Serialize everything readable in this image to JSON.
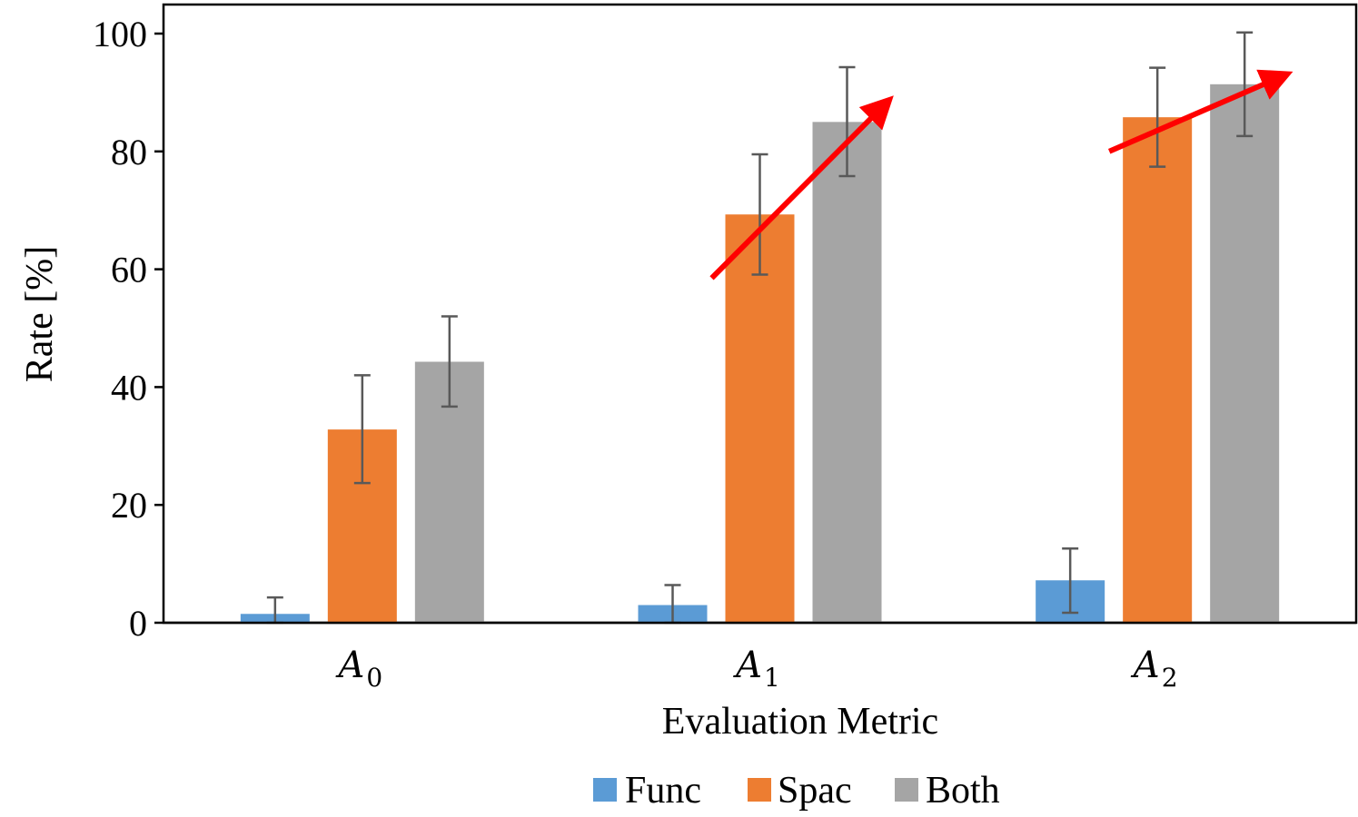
{
  "chart_data": {
    "type": "bar",
    "xlabel": "Evaluation Metric",
    "ylabel": "Rate [%]",
    "ylim": [
      0,
      100
    ],
    "yticks": [
      0,
      20,
      40,
      60,
      80,
      100
    ],
    "categories": [
      {
        "base": "A",
        "sub": "0"
      },
      {
        "base": "A",
        "sub": "1"
      },
      {
        "base": "A",
        "sub": "2"
      }
    ],
    "series": [
      {
        "name": "Func",
        "color": "#5B9BD5",
        "values": [
          1.5,
          3.0,
          7.2
        ],
        "err_low": [
          1.5,
          3.0,
          5.5
        ],
        "err_high": [
          2.8,
          3.4,
          5.4
        ]
      },
      {
        "name": "Spac",
        "color": "#ED7D31",
        "values": [
          32.8,
          69.3,
          85.8
        ],
        "err_low": [
          9.1,
          10.2,
          8.4
        ],
        "err_high": [
          9.2,
          10.2,
          8.4
        ]
      },
      {
        "name": "Both",
        "color": "#A5A5A5",
        "values": [
          44.3,
          85.0,
          91.4
        ],
        "err_low": [
          7.6,
          9.2,
          8.8
        ],
        "err_high": [
          7.7,
          9.3,
          8.8
        ]
      }
    ],
    "annotations": [
      {
        "type": "arrow",
        "color": "#FF0000",
        "category": 1,
        "from_value": 58.5,
        "to_value": 88.5
      },
      {
        "type": "arrow",
        "color": "#FF0000",
        "category": 2,
        "from_value": 80.0,
        "to_value": 93.0
      }
    ],
    "legend_position": "bottom",
    "grid": false
  }
}
